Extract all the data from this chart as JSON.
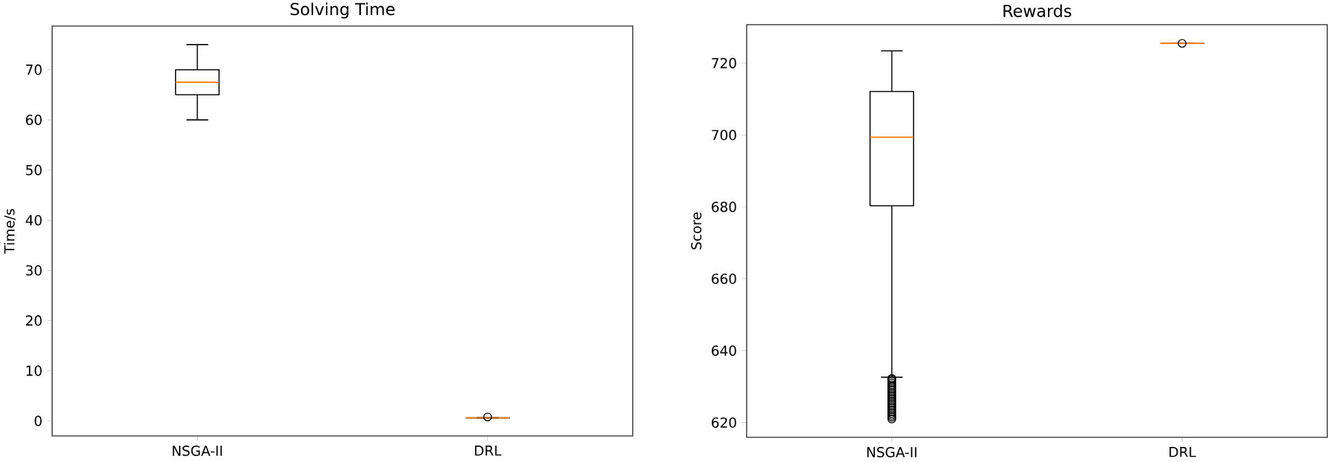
{
  "chart_data": [
    {
      "type": "box",
      "title": "Solving Time",
      "ylabel": "Time/s",
      "categories": [
        "NSGA-II",
        "DRL"
      ],
      "series": [
        {
          "color": "#000000",
          "boxes": [
            {
              "low": 60,
              "q1": 65,
              "median": 67.5,
              "q3": 70,
              "high": 75
            },
            {
              "low": 0.6,
              "q1": 0.6,
              "median": 0.6,
              "q3": 0.6,
              "high": 0.6,
              "outliers": [
                0.8
              ]
            }
          ]
        }
      ],
      "ylim": [
        -3,
        78.7
      ],
      "yticks": [
        0,
        10,
        20,
        30,
        40,
        50,
        60,
        70
      ],
      "marker": "circle"
    },
    {
      "type": "box",
      "title": "Rewards",
      "ylabel": "Score",
      "categories": [
        "NSGA-II",
        "DRL"
      ],
      "series": [
        {
          "color": "#000000",
          "boxes": [
            {
              "low": 632.6,
              "q1": 680.3,
              "median": 699.4,
              "q3": 712.1,
              "high": 723.4,
              "outliers": [
                621,
                621.5,
                622,
                622.5,
                623,
                623.5,
                624,
                624.5,
                625,
                625.5,
                626,
                626.5,
                627,
                627.5,
                628,
                628.5,
                629,
                629.5,
                630,
                630.5,
                631,
                631.5,
                632,
                632.3
              ]
            },
            {
              "low": 725.5,
              "q1": 725.5,
              "median": 725.5,
              "q3": 725.5,
              "high": 725.5,
              "outliers": [
                725.5
              ]
            }
          ]
        }
      ],
      "ylim": [
        615.9,
        730.7
      ],
      "yticks": [
        620,
        640,
        660,
        680,
        700,
        720
      ],
      "marker": "circle"
    }
  ]
}
